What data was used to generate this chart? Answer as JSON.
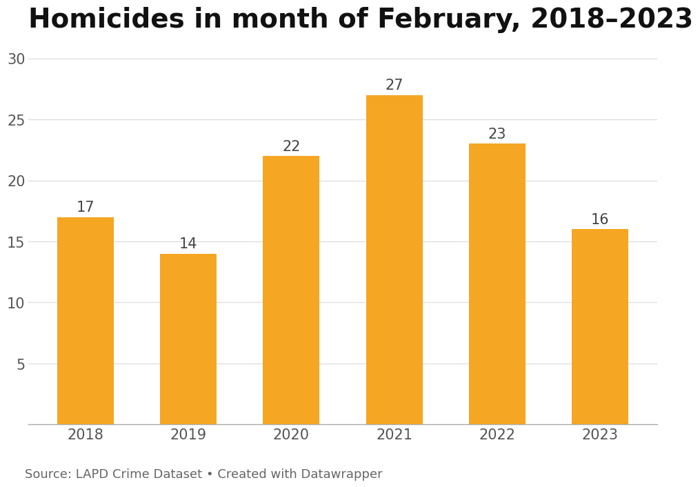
{
  "title": "Homicides in month of February, 2018–2023",
  "categories": [
    "2018",
    "2019",
    "2020",
    "2021",
    "2022",
    "2023"
  ],
  "values": [
    17,
    14,
    22,
    27,
    23,
    16
  ],
  "bar_color": "#F5A623",
  "background_color": "#ffffff",
  "ylim": [
    0,
    31
  ],
  "yticks": [
    5,
    10,
    15,
    20,
    25,
    30
  ],
  "ytick_labels_show": [
    5,
    10,
    15,
    20,
    25,
    30
  ],
  "title_fontsize": 28,
  "tick_fontsize": 15,
  "value_label_fontsize": 15,
  "source_text": "Source: LAPD Crime Dataset • Created with Datawrapper",
  "source_fontsize": 13,
  "bar_width": 0.55,
  "grid_color": "#dddddd",
  "tick_color": "#555555",
  "value_label_color": "#444444",
  "source_color": "#666666",
  "title_color": "#111111",
  "spine_color": "#aaaaaa"
}
